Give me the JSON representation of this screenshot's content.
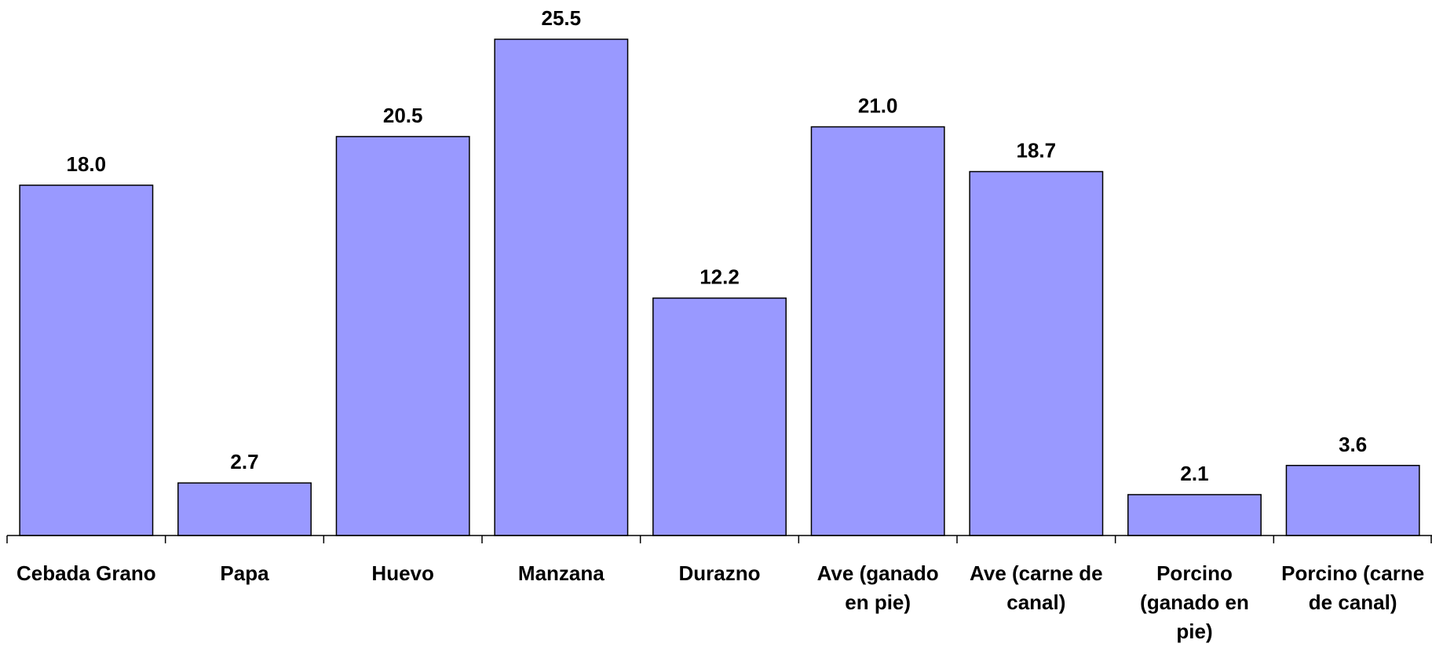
{
  "chart_data": {
    "type": "bar",
    "categories": [
      "Cebada Grano",
      "Papa",
      "Huevo",
      "Manzana",
      "Durazno",
      "Ave (ganado en pie)",
      "Ave (carne de canal)",
      "Porcino (ganado en pie)",
      "Porcino (carne de canal)"
    ],
    "values": [
      18.0,
      2.7,
      20.5,
      25.5,
      12.2,
      21.0,
      18.7,
      2.1,
      3.6
    ],
    "value_labels": [
      "18.0",
      "2.7",
      "20.5",
      "25.5",
      "12.2",
      "21.0",
      "18.7",
      "2.1",
      "3.6"
    ],
    "color": "#9999ff"
  }
}
